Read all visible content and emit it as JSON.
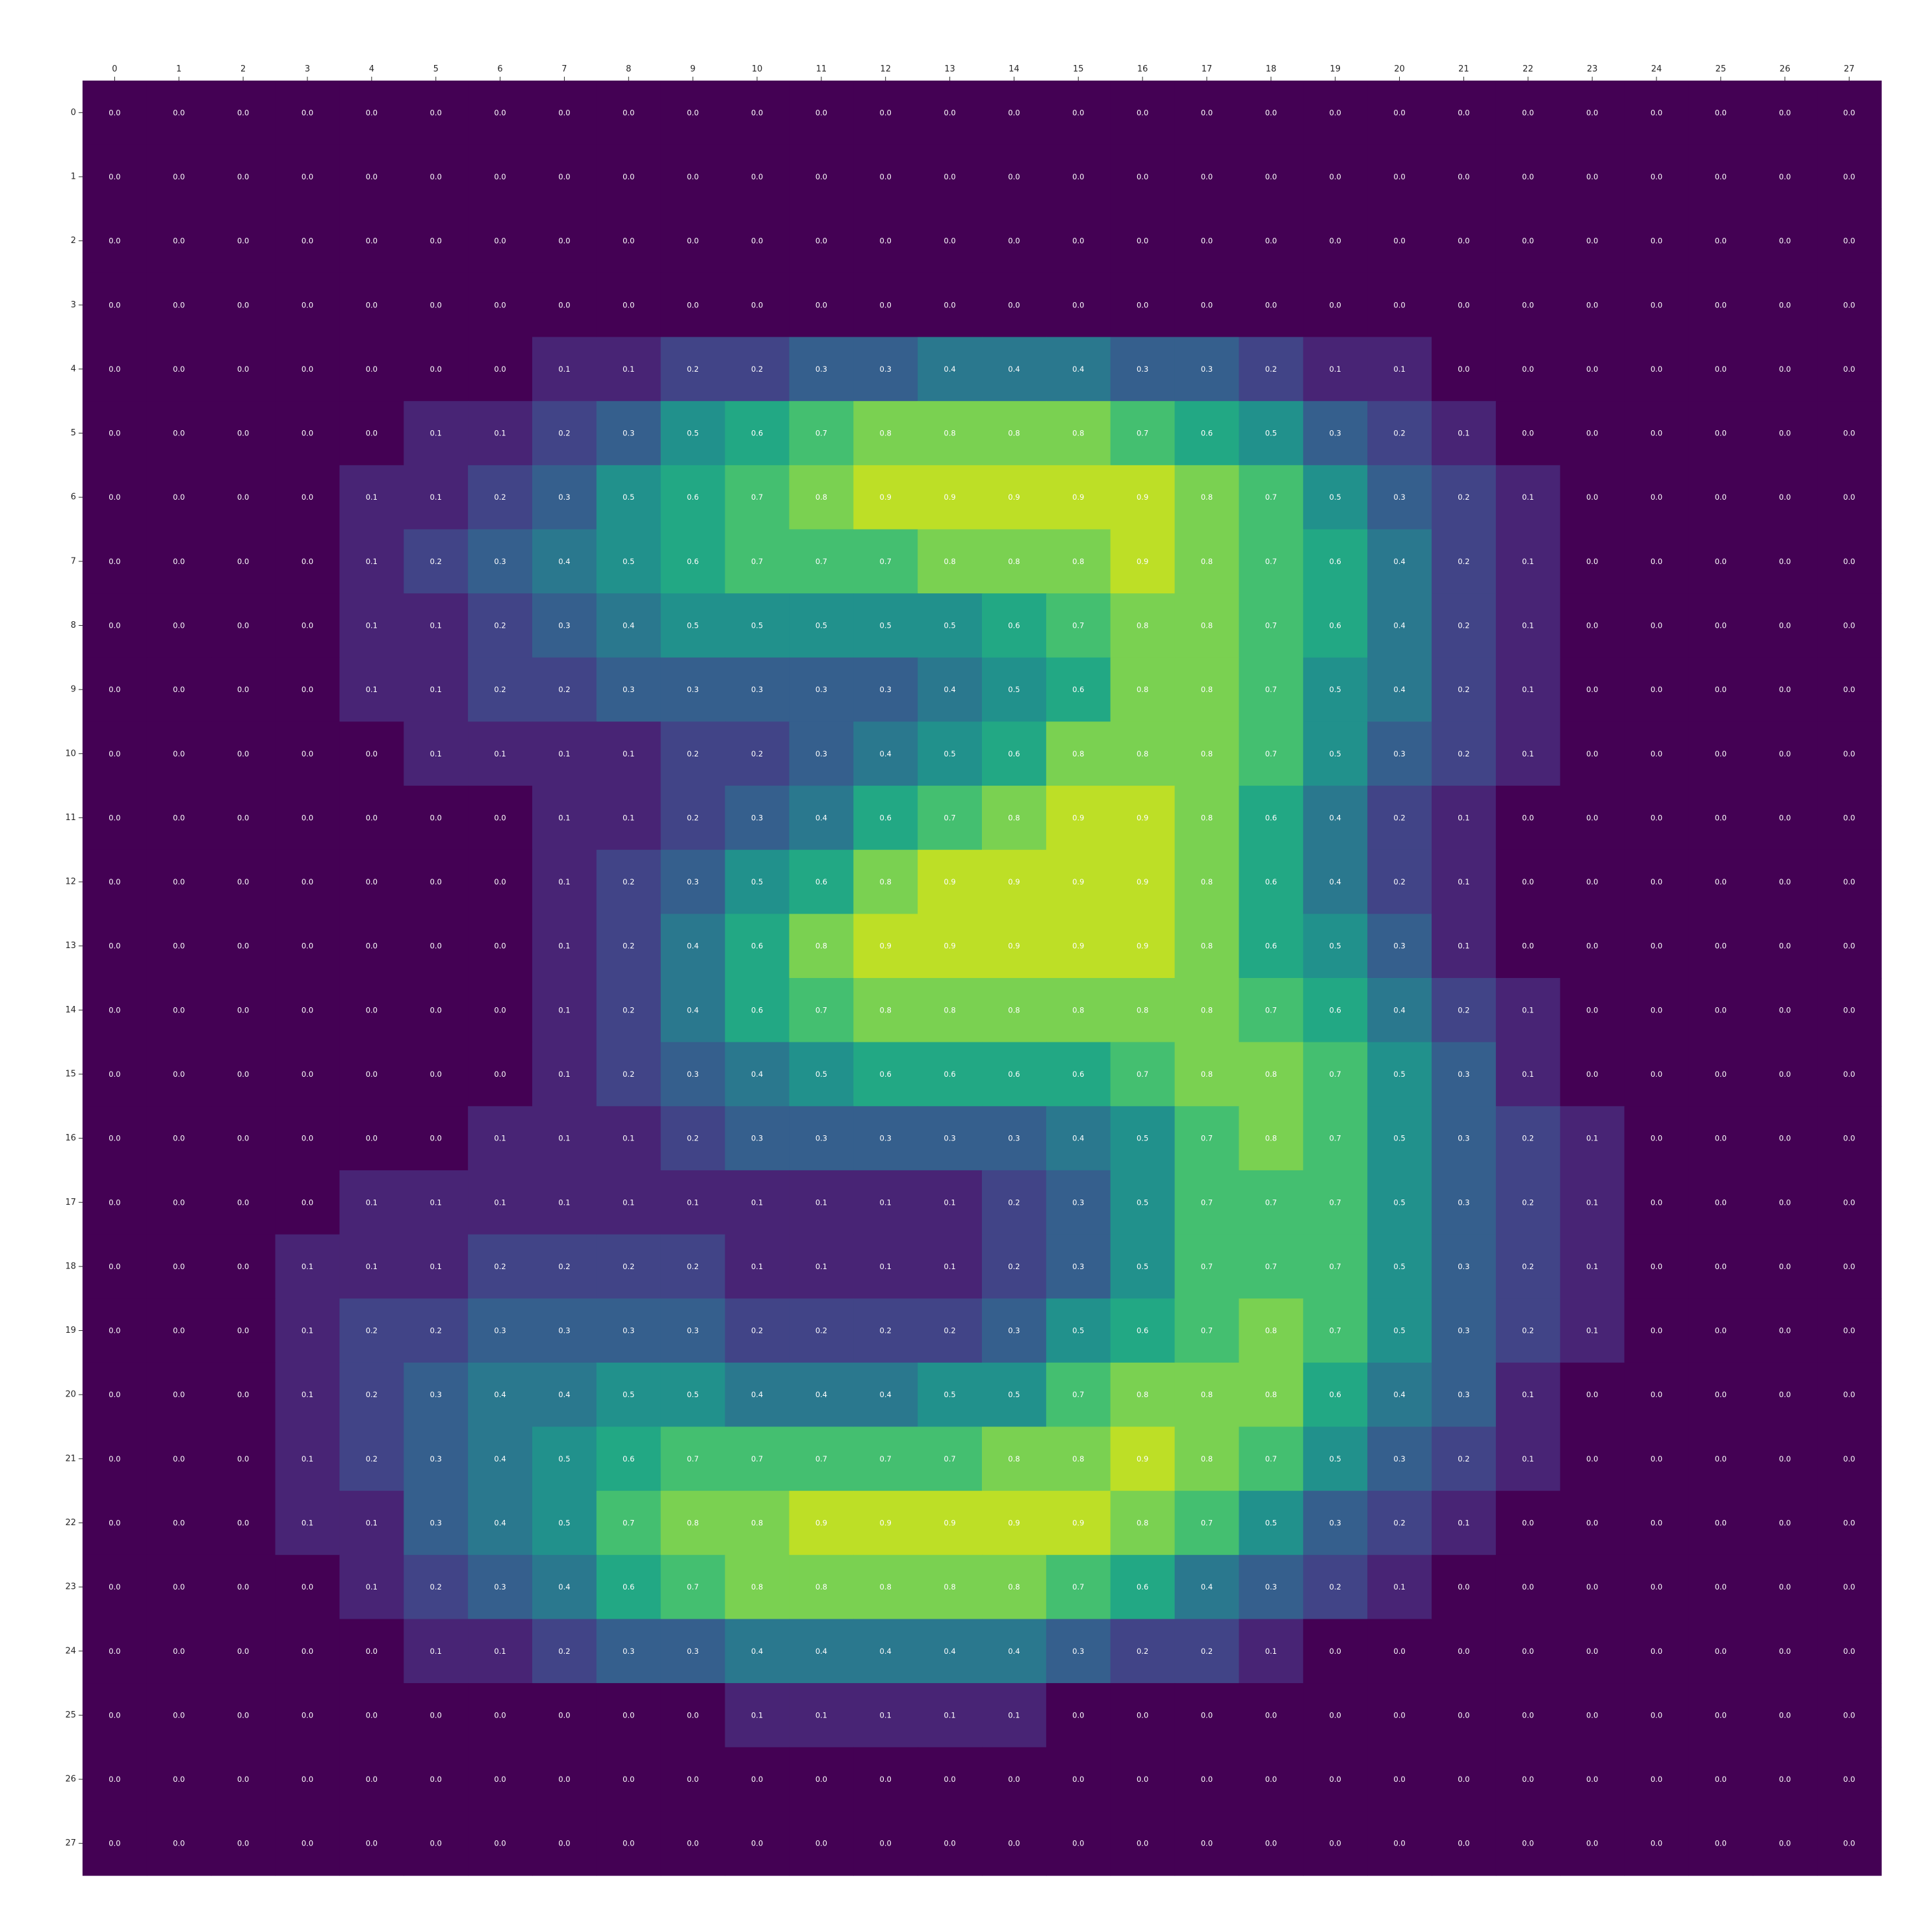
{
  "chart_data": {
    "type": "heatmap",
    "colormap": "viridis",
    "vmin": 0.0,
    "vmax": 1.0,
    "x_ticks": [
      "0",
      "1",
      "2",
      "3",
      "4",
      "5",
      "6",
      "7",
      "8",
      "9",
      "10",
      "11",
      "12",
      "13",
      "14",
      "15",
      "16",
      "17",
      "18",
      "19",
      "20",
      "21",
      "22",
      "23",
      "24",
      "25",
      "26",
      "27"
    ],
    "y_ticks": [
      "0",
      "1",
      "2",
      "3",
      "4",
      "5",
      "6",
      "7",
      "8",
      "9",
      "10",
      "11",
      "12",
      "13",
      "14",
      "15",
      "16",
      "17",
      "18",
      "19",
      "20",
      "21",
      "22",
      "23",
      "24",
      "25",
      "26",
      "27"
    ],
    "x_tick_position": "top",
    "y_tick_position": "left",
    "values": [
      [
        0.0,
        0.0,
        0.0,
        0.0,
        0.0,
        0.0,
        0.0,
        0.0,
        0.0,
        0.0,
        0.0,
        0.0,
        0.0,
        0.0,
        0.0,
        0.0,
        0.0,
        0.0,
        0.0,
        0.0,
        0.0,
        0.0,
        0.0,
        0.0,
        0.0,
        0.0,
        0.0,
        0.0
      ],
      [
        0.0,
        0.0,
        0.0,
        0.0,
        0.0,
        0.0,
        0.0,
        0.0,
        0.0,
        0.0,
        0.0,
        0.0,
        0.0,
        0.0,
        0.0,
        0.0,
        0.0,
        0.0,
        0.0,
        0.0,
        0.0,
        0.0,
        0.0,
        0.0,
        0.0,
        0.0,
        0.0,
        0.0
      ],
      [
        0.0,
        0.0,
        0.0,
        0.0,
        0.0,
        0.0,
        0.0,
        0.0,
        0.0,
        0.0,
        0.0,
        0.0,
        0.0,
        0.0,
        0.0,
        0.0,
        0.0,
        0.0,
        0.0,
        0.0,
        0.0,
        0.0,
        0.0,
        0.0,
        0.0,
        0.0,
        0.0,
        0.0
      ],
      [
        0.0,
        0.0,
        0.0,
        0.0,
        0.0,
        0.0,
        0.0,
        0.0,
        0.0,
        0.0,
        0.0,
        0.0,
        0.0,
        0.0,
        0.0,
        0.0,
        0.0,
        0.0,
        0.0,
        0.0,
        0.0,
        0.0,
        0.0,
        0.0,
        0.0,
        0.0,
        0.0,
        0.0
      ],
      [
        0.0,
        0.0,
        0.0,
        0.0,
        0.0,
        0.0,
        0.0,
        0.1,
        0.1,
        0.2,
        0.2,
        0.3,
        0.3,
        0.4,
        0.4,
        0.4,
        0.3,
        0.3,
        0.2,
        0.1,
        0.1,
        0.0,
        0.0,
        0.0,
        0.0,
        0.0,
        0.0,
        0.0
      ],
      [
        0.0,
        0.0,
        0.0,
        0.0,
        0.0,
        0.1,
        0.1,
        0.2,
        0.3,
        0.5,
        0.6,
        0.7,
        0.8,
        0.8,
        0.8,
        0.8,
        0.7,
        0.6,
        0.5,
        0.3,
        0.2,
        0.1,
        0.0,
        0.0,
        0.0,
        0.0,
        0.0,
        0.0
      ],
      [
        0.0,
        0.0,
        0.0,
        0.0,
        0.1,
        0.1,
        0.2,
        0.3,
        0.5,
        0.6,
        0.7,
        0.8,
        0.9,
        0.9,
        0.9,
        0.9,
        0.9,
        0.8,
        0.7,
        0.5,
        0.3,
        0.2,
        0.1,
        0.0,
        0.0,
        0.0,
        0.0,
        0.0
      ],
      [
        0.0,
        0.0,
        0.0,
        0.0,
        0.1,
        0.2,
        0.3,
        0.4,
        0.5,
        0.6,
        0.7,
        0.7,
        0.7,
        0.8,
        0.8,
        0.8,
        0.9,
        0.8,
        0.7,
        0.6,
        0.4,
        0.2,
        0.1,
        0.0,
        0.0,
        0.0,
        0.0,
        0.0
      ],
      [
        0.0,
        0.0,
        0.0,
        0.0,
        0.1,
        0.1,
        0.2,
        0.3,
        0.4,
        0.5,
        0.5,
        0.5,
        0.5,
        0.5,
        0.6,
        0.7,
        0.8,
        0.8,
        0.7,
        0.6,
        0.4,
        0.2,
        0.1,
        0.0,
        0.0,
        0.0,
        0.0,
        0.0
      ],
      [
        0.0,
        0.0,
        0.0,
        0.0,
        0.1,
        0.1,
        0.2,
        0.2,
        0.3,
        0.3,
        0.3,
        0.3,
        0.3,
        0.4,
        0.5,
        0.6,
        0.8,
        0.8,
        0.7,
        0.5,
        0.4,
        0.2,
        0.1,
        0.0,
        0.0,
        0.0,
        0.0,
        0.0
      ],
      [
        0.0,
        0.0,
        0.0,
        0.0,
        0.0,
        0.1,
        0.1,
        0.1,
        0.1,
        0.2,
        0.2,
        0.3,
        0.4,
        0.5,
        0.6,
        0.8,
        0.8,
        0.8,
        0.7,
        0.5,
        0.3,
        0.2,
        0.1,
        0.0,
        0.0,
        0.0,
        0.0,
        0.0
      ],
      [
        0.0,
        0.0,
        0.0,
        0.0,
        0.0,
        0.0,
        0.0,
        0.1,
        0.1,
        0.2,
        0.3,
        0.4,
        0.6,
        0.7,
        0.8,
        0.9,
        0.9,
        0.8,
        0.6,
        0.4,
        0.2,
        0.1,
        0.0,
        0.0,
        0.0,
        0.0,
        0.0,
        0.0
      ],
      [
        0.0,
        0.0,
        0.0,
        0.0,
        0.0,
        0.0,
        0.0,
        0.1,
        0.2,
        0.3,
        0.5,
        0.6,
        0.8,
        0.9,
        0.9,
        0.9,
        0.9,
        0.8,
        0.6,
        0.4,
        0.2,
        0.1,
        0.0,
        0.0,
        0.0,
        0.0,
        0.0,
        0.0
      ],
      [
        0.0,
        0.0,
        0.0,
        0.0,
        0.0,
        0.0,
        0.0,
        0.1,
        0.2,
        0.4,
        0.6,
        0.8,
        0.9,
        0.9,
        0.9,
        0.9,
        0.9,
        0.8,
        0.6,
        0.5,
        0.3,
        0.1,
        0.0,
        0.0,
        0.0,
        0.0,
        0.0,
        0.0
      ],
      [
        0.0,
        0.0,
        0.0,
        0.0,
        0.0,
        0.0,
        0.0,
        0.1,
        0.2,
        0.4,
        0.6,
        0.7,
        0.8,
        0.8,
        0.8,
        0.8,
        0.8,
        0.8,
        0.7,
        0.6,
        0.4,
        0.2,
        0.1,
        0.0,
        0.0,
        0.0,
        0.0,
        0.0
      ],
      [
        0.0,
        0.0,
        0.0,
        0.0,
        0.0,
        0.0,
        0.0,
        0.1,
        0.2,
        0.3,
        0.4,
        0.5,
        0.6,
        0.6,
        0.6,
        0.6,
        0.7,
        0.8,
        0.8,
        0.7,
        0.5,
        0.3,
        0.1,
        0.0,
        0.0,
        0.0,
        0.0,
        0.0
      ],
      [
        0.0,
        0.0,
        0.0,
        0.0,
        0.0,
        0.0,
        0.1,
        0.1,
        0.1,
        0.2,
        0.3,
        0.3,
        0.3,
        0.3,
        0.3,
        0.4,
        0.5,
        0.7,
        0.8,
        0.7,
        0.5,
        0.3,
        0.2,
        0.1,
        0.0,
        0.0,
        0.0,
        0.0
      ],
      [
        0.0,
        0.0,
        0.0,
        0.0,
        0.1,
        0.1,
        0.1,
        0.1,
        0.1,
        0.1,
        0.1,
        0.1,
        0.1,
        0.1,
        0.2,
        0.3,
        0.5,
        0.7,
        0.7,
        0.7,
        0.5,
        0.3,
        0.2,
        0.1,
        0.0,
        0.0,
        0.0,
        0.0
      ],
      [
        0.0,
        0.0,
        0.0,
        0.1,
        0.1,
        0.1,
        0.2,
        0.2,
        0.2,
        0.2,
        0.1,
        0.1,
        0.1,
        0.1,
        0.2,
        0.3,
        0.5,
        0.7,
        0.7,
        0.7,
        0.5,
        0.3,
        0.2,
        0.1,
        0.0,
        0.0,
        0.0,
        0.0
      ],
      [
        0.0,
        0.0,
        0.0,
        0.1,
        0.2,
        0.2,
        0.3,
        0.3,
        0.3,
        0.3,
        0.2,
        0.2,
        0.2,
        0.2,
        0.3,
        0.5,
        0.6,
        0.7,
        0.8,
        0.7,
        0.5,
        0.3,
        0.2,
        0.1,
        0.0,
        0.0,
        0.0,
        0.0
      ],
      [
        0.0,
        0.0,
        0.0,
        0.1,
        0.2,
        0.3,
        0.4,
        0.4,
        0.5,
        0.5,
        0.4,
        0.4,
        0.4,
        0.5,
        0.5,
        0.7,
        0.8,
        0.8,
        0.8,
        0.6,
        0.4,
        0.3,
        0.1,
        0.0,
        0.0,
        0.0,
        0.0,
        0.0
      ],
      [
        0.0,
        0.0,
        0.0,
        0.1,
        0.2,
        0.3,
        0.4,
        0.5,
        0.6,
        0.7,
        0.7,
        0.7,
        0.7,
        0.7,
        0.8,
        0.8,
        0.9,
        0.8,
        0.7,
        0.5,
        0.3,
        0.2,
        0.1,
        0.0,
        0.0,
        0.0,
        0.0,
        0.0
      ],
      [
        0.0,
        0.0,
        0.0,
        0.1,
        0.1,
        0.3,
        0.4,
        0.5,
        0.7,
        0.8,
        0.8,
        0.9,
        0.9,
        0.9,
        0.9,
        0.9,
        0.8,
        0.7,
        0.5,
        0.3,
        0.2,
        0.1,
        0.0,
        0.0,
        0.0,
        0.0,
        0.0,
        0.0
      ],
      [
        0.0,
        0.0,
        0.0,
        0.0,
        0.1,
        0.2,
        0.3,
        0.4,
        0.6,
        0.7,
        0.8,
        0.8,
        0.8,
        0.8,
        0.8,
        0.7,
        0.6,
        0.4,
        0.3,
        0.2,
        0.1,
        0.0,
        0.0,
        0.0,
        0.0,
        0.0,
        0.0,
        0.0
      ],
      [
        0.0,
        0.0,
        0.0,
        0.0,
        0.0,
        0.1,
        0.1,
        0.2,
        0.3,
        0.3,
        0.4,
        0.4,
        0.4,
        0.4,
        0.4,
        0.3,
        0.2,
        0.2,
        0.1,
        0.0,
        0.0,
        0.0,
        0.0,
        0.0,
        0.0,
        0.0,
        0.0,
        0.0
      ],
      [
        0.0,
        0.0,
        0.0,
        0.0,
        0.0,
        0.0,
        0.0,
        0.0,
        0.0,
        0.0,
        0.1,
        0.1,
        0.1,
        0.1,
        0.1,
        0.0,
        0.0,
        0.0,
        0.0,
        0.0,
        0.0,
        0.0,
        0.0,
        0.0,
        0.0,
        0.0,
        0.0,
        0.0
      ],
      [
        0.0,
        0.0,
        0.0,
        0.0,
        0.0,
        0.0,
        0.0,
        0.0,
        0.0,
        0.0,
        0.0,
        0.0,
        0.0,
        0.0,
        0.0,
        0.0,
        0.0,
        0.0,
        0.0,
        0.0,
        0.0,
        0.0,
        0.0,
        0.0,
        0.0,
        0.0,
        0.0,
        0.0
      ],
      [
        0.0,
        0.0,
        0.0,
        0.0,
        0.0,
        0.0,
        0.0,
        0.0,
        0.0,
        0.0,
        0.0,
        0.0,
        0.0,
        0.0,
        0.0,
        0.0,
        0.0,
        0.0,
        0.0,
        0.0,
        0.0,
        0.0,
        0.0,
        0.0,
        0.0,
        0.0,
        0.0,
        0.0
      ]
    ],
    "cell_label_format": "one decimal",
    "cell_label_color": "#ffffff",
    "colorbar": false,
    "title": "",
    "xlabel": "",
    "ylabel": "",
    "grid": false,
    "legend": "none"
  }
}
